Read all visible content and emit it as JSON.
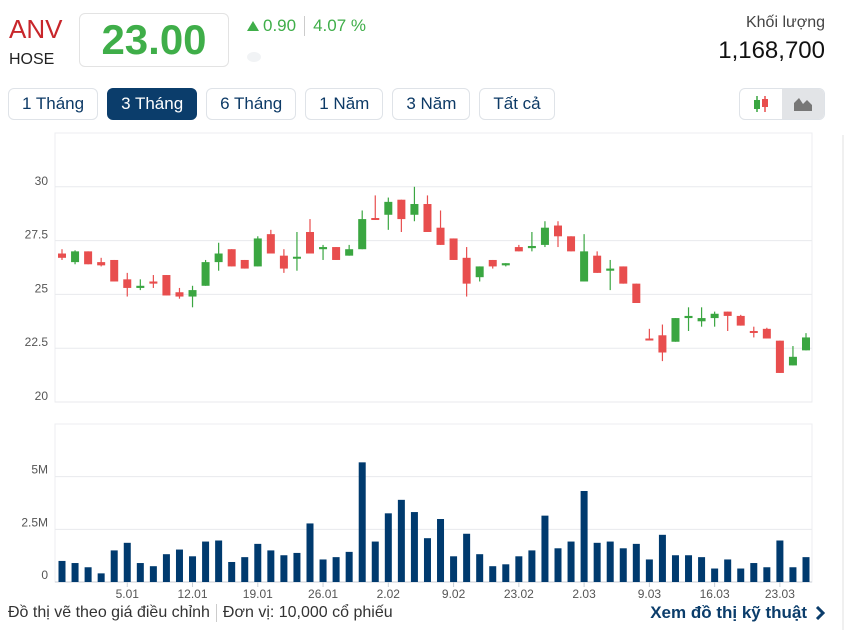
{
  "header": {
    "ticker": "ANV",
    "exchange": "HOSE",
    "price": "23.00",
    "change": "0.90",
    "change_pct": "4.07 %",
    "volume_label": "Khối lượng",
    "volume_value": "1,168,700"
  },
  "ranges": [
    {
      "label": "1 Tháng"
    },
    {
      "label": "3 Tháng",
      "active": true
    },
    {
      "label": "6 Tháng"
    },
    {
      "label": "1 Năm"
    },
    {
      "label": "3 Năm"
    },
    {
      "label": "Tất cả"
    }
  ],
  "chart_type": {
    "options": [
      "candlestick-icon",
      "area-icon"
    ],
    "selected": "area-icon"
  },
  "colors": {
    "up": "#3aa641",
    "down": "#e84e4e",
    "volume": "#003a6e",
    "accent": "#0b3d6b"
  },
  "footer": {
    "note": "Đồ thị vẽ theo giá điều chỉnh",
    "unit": "Đơn vị: 10,000 cổ phiếu",
    "link": "Xem đồ thị kỹ thuật"
  },
  "chart_data": [
    {
      "type": "candlestick",
      "title": "ANV price",
      "ylim": [
        20,
        32.5
      ],
      "yticks": [
        "30",
        "27.5",
        "25",
        "22.5",
        "20"
      ],
      "ytick_values": [
        30,
        27.5,
        25,
        22.5,
        20
      ],
      "grid": true,
      "ohlc": [
        [
          26.9,
          27.1,
          26.6,
          26.7
        ],
        [
          26.5,
          27.05,
          26.4,
          27.0
        ],
        [
          27.0,
          27.0,
          26.4,
          26.4
        ],
        [
          26.5,
          26.7,
          26.3,
          26.35
        ],
        [
          26.6,
          26.6,
          25.6,
          25.6
        ],
        [
          25.7,
          26.0,
          24.9,
          25.3
        ],
        [
          25.3,
          25.7,
          25.2,
          25.4
        ],
        [
          25.6,
          25.9,
          25.3,
          25.5
        ],
        [
          25.9,
          25.9,
          24.95,
          24.95
        ],
        [
          25.1,
          25.3,
          24.8,
          24.9
        ],
        [
          24.9,
          25.4,
          24.4,
          25.2
        ],
        [
          25.4,
          26.6,
          25.4,
          26.5
        ],
        [
          26.5,
          27.4,
          26.1,
          26.9
        ],
        [
          27.1,
          27.1,
          26.3,
          26.3
        ],
        [
          26.6,
          26.6,
          26.2,
          26.2
        ],
        [
          26.3,
          27.7,
          26.3,
          27.6
        ],
        [
          27.8,
          28.0,
          26.9,
          26.9
        ],
        [
          26.8,
          27.1,
          26.0,
          26.2
        ],
        [
          26.7,
          27.9,
          26.1,
          26.75
        ],
        [
          27.9,
          28.5,
          26.9,
          26.9
        ],
        [
          27.1,
          27.3,
          26.6,
          27.2
        ],
        [
          27.2,
          27.2,
          26.6,
          26.6
        ],
        [
          26.8,
          27.3,
          26.8,
          27.1
        ],
        [
          27.1,
          28.9,
          27.1,
          28.5
        ],
        [
          28.55,
          29.6,
          28.5,
          28.5
        ],
        [
          28.7,
          29.5,
          28.0,
          29.3
        ],
        [
          29.4,
          29.4,
          27.9,
          28.5
        ],
        [
          28.7,
          30.0,
          28.4,
          29.2
        ],
        [
          29.2,
          29.6,
          27.9,
          27.9
        ],
        [
          28.1,
          28.9,
          27.3,
          27.3
        ],
        [
          27.6,
          27.6,
          26.6,
          26.6
        ],
        [
          26.7,
          27.2,
          24.9,
          25.5
        ],
        [
          25.8,
          26.3,
          25.6,
          26.3
        ],
        [
          26.6,
          26.6,
          26.2,
          26.3
        ],
        [
          26.35,
          26.45,
          26.3,
          26.45
        ],
        [
          27.2,
          27.3,
          27.0,
          27.0
        ],
        [
          27.15,
          27.9,
          27.0,
          27.25
        ],
        [
          27.3,
          28.4,
          27.2,
          28.1
        ],
        [
          28.2,
          28.4,
          27.2,
          27.7
        ],
        [
          27.7,
          27.7,
          27.0,
          27.0
        ],
        [
          25.6,
          27.8,
          25.6,
          27.0
        ],
        [
          26.8,
          27.0,
          26.0,
          26.0
        ],
        [
          26.1,
          26.6,
          25.2,
          26.2
        ],
        [
          26.3,
          26.3,
          25.5,
          25.5
        ],
        [
          25.5,
          25.5,
          24.6,
          24.6
        ],
        [
          22.95,
          23.4,
          22.9,
          22.9
        ],
        [
          23.1,
          23.6,
          21.9,
          22.3
        ],
        [
          22.8,
          23.9,
          22.8,
          23.9
        ],
        [
          23.9,
          24.4,
          23.3,
          24.0
        ],
        [
          23.75,
          24.4,
          23.5,
          23.9
        ],
        [
          23.9,
          24.2,
          23.5,
          24.1
        ],
        [
          24.2,
          24.2,
          23.3,
          24.0
        ],
        [
          24.0,
          24.05,
          23.55,
          23.55
        ],
        [
          23.3,
          23.5,
          23.0,
          23.25
        ],
        [
          23.4,
          23.45,
          22.95,
          22.95
        ],
        [
          22.85,
          22.85,
          21.35,
          21.35
        ],
        [
          21.7,
          22.6,
          21.7,
          22.1
        ],
        [
          22.4,
          23.2,
          22.4,
          23.0
        ]
      ]
    },
    {
      "type": "bar",
      "title": "Volume",
      "ylim": [
        0,
        7.5
      ],
      "yunit": "M",
      "yticks": [
        "5M",
        "2.5M",
        "0"
      ],
      "ytick_values": [
        5,
        2.5,
        0
      ],
      "grid": true,
      "xtick_labels": [
        "5.01",
        "12.01",
        "19.01",
        "26.01",
        "2.02",
        "9.02",
        "23.02",
        "2.03",
        "9.03",
        "16.03",
        "23.03"
      ],
      "xtick_index": [
        5,
        10,
        15,
        20,
        25,
        30,
        35,
        40,
        45,
        50,
        55
      ],
      "values": [
        1.0,
        0.9,
        0.7,
        0.41,
        1.5,
        1.86,
        0.9,
        0.75,
        1.32,
        1.54,
        1.22,
        1.92,
        1.97,
        0.95,
        1.18,
        1.81,
        1.5,
        1.27,
        1.38,
        2.78,
        1.07,
        1.18,
        1.43,
        5.68,
        1.92,
        3.26,
        3.9,
        3.32,
        2.08,
        2.99,
        1.22,
        2.29,
        1.32,
        0.75,
        0.84,
        1.22,
        1.5,
        3.15,
        1.6,
        1.92,
        4.32,
        1.86,
        1.92,
        1.6,
        1.81,
        1.07,
        2.24,
        1.27,
        1.27,
        1.18,
        0.64,
        1.07,
        0.64,
        0.9,
        0.7,
        1.97,
        0.7,
        1.18
      ]
    }
  ]
}
